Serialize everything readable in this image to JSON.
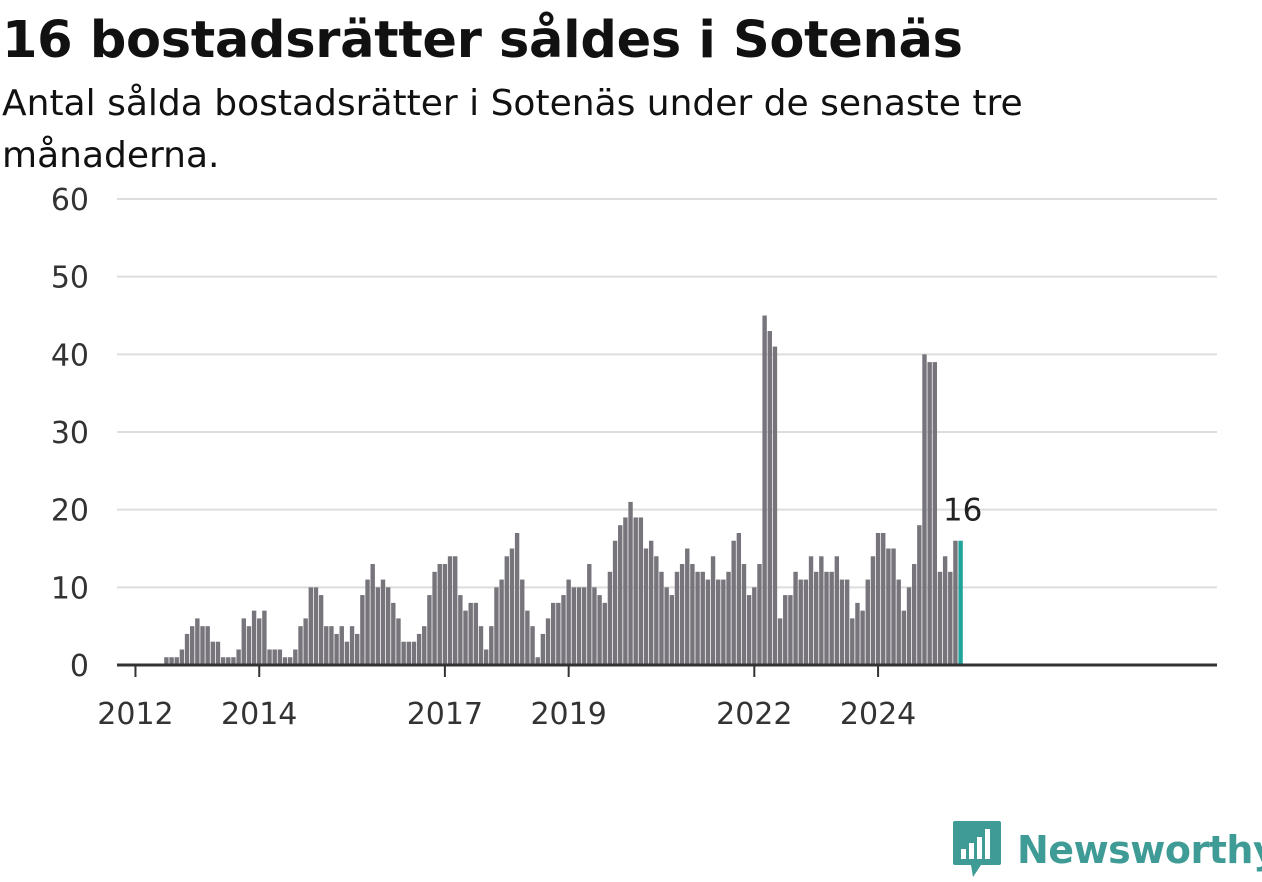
{
  "title": "16 bostadsrätter såldes i Sotenäs",
  "subtitle": "Antal sålda bostadsrätter i Sotenäs under de senaste tre månaderna.",
  "brand": {
    "name": "Newsworthy",
    "icon": "newsworthy-logo-icon",
    "color": "#3f9b95"
  },
  "chart_data": {
    "type": "bar",
    "x_start": "2011-10",
    "x_unit": "month",
    "values": [
      0,
      0,
      0,
      0,
      0,
      0,
      0,
      0,
      0,
      1,
      1,
      1,
      2,
      4,
      5,
      6,
      5,
      5,
      3,
      3,
      1,
      1,
      1,
      2,
      6,
      5,
      7,
      6,
      7,
      2,
      2,
      2,
      1,
      1,
      2,
      5,
      6,
      10,
      10,
      9,
      5,
      5,
      4,
      5,
      3,
      5,
      4,
      9,
      11,
      13,
      10,
      11,
      10,
      8,
      6,
      3,
      3,
      3,
      4,
      5,
      9,
      12,
      13,
      13,
      14,
      14,
      9,
      7,
      8,
      8,
      5,
      2,
      5,
      10,
      11,
      14,
      15,
      17,
      11,
      7,
      5,
      1,
      4,
      6,
      8,
      8,
      9,
      11,
      10,
      10,
      10,
      13,
      10,
      9,
      8,
      12,
      16,
      18,
      19,
      21,
      19,
      19,
      15,
      16,
      14,
      12,
      10,
      9,
      12,
      13,
      15,
      13,
      12,
      12,
      11,
      14,
      11,
      11,
      12,
      16,
      17,
      13,
      9,
      10,
      13,
      45,
      43,
      41,
      6,
      9,
      9,
      12,
      11,
      11,
      14,
      12,
      14,
      12,
      12,
      14,
      11,
      11,
      6,
      8,
      7,
      11,
      14,
      17,
      17,
      15,
      15,
      11,
      7,
      10,
      13,
      18,
      40,
      39,
      39,
      12,
      14,
      12,
      16,
      16
    ],
    "x_ticks": [
      "2012",
      "2014",
      "2017",
      "2019",
      "2022",
      "2024"
    ],
    "ylim": [
      0,
      60
    ],
    "y_ticks": [
      0,
      10,
      20,
      30,
      40,
      50,
      60
    ],
    "grid": true,
    "highlight": {
      "label": "16",
      "value": 16,
      "color": "#1fa39a"
    },
    "bar_color": "#77757b",
    "xlabel": "",
    "ylabel": ""
  }
}
